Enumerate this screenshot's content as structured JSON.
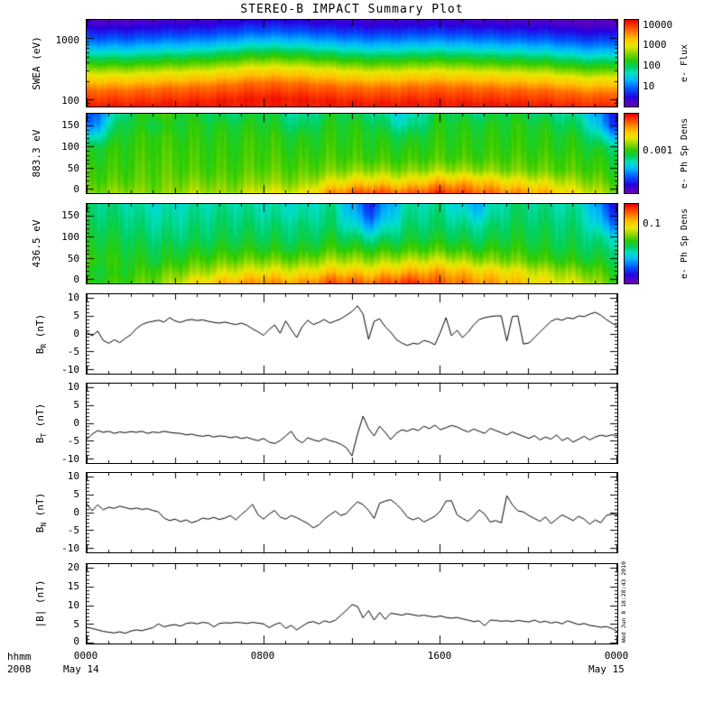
{
  "title": "STEREO-B IMPACT Summary Plot",
  "timestamp": "Wed Jun  8 18:28:43 2010",
  "footer": {
    "hhmm": "hhmm",
    "year": "2008",
    "date_start": "May 14",
    "date_end": "May 15"
  },
  "x_axis": {
    "tick_labels": [
      "0000",
      "0800",
      "1600",
      "0000"
    ],
    "hours_range": [
      0,
      24
    ]
  },
  "colormap": {
    "stops": [
      [
        0.0,
        "#6a00b8"
      ],
      [
        0.1,
        "#2800e0"
      ],
      [
        0.2,
        "#0055ff"
      ],
      [
        0.3,
        "#00b4ff"
      ],
      [
        0.38,
        "#00e0c8"
      ],
      [
        0.46,
        "#00d060"
      ],
      [
        0.54,
        "#30cc00"
      ],
      [
        0.62,
        "#90d800"
      ],
      [
        0.7,
        "#e8e800"
      ],
      [
        0.78,
        "#ffc400"
      ],
      [
        0.86,
        "#ff8000"
      ],
      [
        0.93,
        "#ff4000"
      ],
      [
        1.0,
        "#e80000"
      ]
    ]
  },
  "chart_data": [
    {
      "type": "heatmap",
      "name": "SWEA",
      "ylabel": "SWEA (eV)",
      "yscale": "log",
      "yrange": [
        80,
        2000
      ],
      "ytick_labels": [
        "1000",
        "100"
      ],
      "y_major": [
        100,
        1000
      ],
      "y_minor": [
        90,
        200,
        300,
        400,
        500,
        600,
        700,
        800,
        900,
        2000
      ],
      "colorbar": {
        "labels": [
          "10000",
          "1000",
          "100",
          "10"
        ],
        "title": "e- Flux"
      },
      "profile": [
        0.03,
        0.1,
        0.17,
        0.26,
        0.36,
        0.48,
        0.58,
        0.7,
        0.79,
        0.88,
        0.93,
        0.97
      ],
      "col_shift": [
        0,
        0,
        0,
        0.2,
        0.3,
        0.4,
        0.6,
        0.9,
        1.0,
        0.9,
        0.7,
        0.5,
        0.3,
        0.3,
        0.4,
        0.5,
        0.4,
        0.3,
        0.2,
        0.1,
        0.0,
        -0.3,
        -0.5,
        -0.3
      ],
      "noise": 0.02
    },
    {
      "type": "heatmap",
      "name": "883.3 eV",
      "ylabel": "883.3 eV",
      "yscale": "linear",
      "yrange": [
        -8,
        178
      ],
      "ytick_labels": [
        "150",
        "100",
        "50",
        "0"
      ],
      "y_major": [
        0,
        50,
        100,
        150
      ],
      "y_minor": [
        10,
        20,
        30,
        40,
        60,
        70,
        80,
        90,
        110,
        120,
        130,
        140,
        160,
        170
      ],
      "colorbar": {
        "labels": [
          "0.001"
        ],
        "title": "e- Ph Sp Dens"
      },
      "grid": [
        [
          0.15,
          0.45,
          0.55,
          0.5,
          0.45,
          0.5,
          0.4,
          0.5,
          0.45,
          0.35,
          0.5,
          0.45,
          0.5,
          0.45,
          0.4,
          0.12
        ],
        [
          0.2,
          0.5,
          0.5,
          0.52,
          0.5,
          0.52,
          0.45,
          0.52,
          0.5,
          0.4,
          0.52,
          0.5,
          0.52,
          0.5,
          0.45,
          0.15
        ],
        [
          0.35,
          0.52,
          0.54,
          0.53,
          0.52,
          0.54,
          0.5,
          0.53,
          0.52,
          0.48,
          0.53,
          0.52,
          0.53,
          0.52,
          0.5,
          0.3
        ],
        [
          0.5,
          0.53,
          0.55,
          0.54,
          0.53,
          0.55,
          0.52,
          0.54,
          0.53,
          0.52,
          0.54,
          0.53,
          0.54,
          0.53,
          0.52,
          0.45
        ],
        [
          0.52,
          0.54,
          0.56,
          0.55,
          0.54,
          0.56,
          0.54,
          0.56,
          0.55,
          0.54,
          0.56,
          0.55,
          0.56,
          0.55,
          0.54,
          0.5
        ],
        [
          0.54,
          0.55,
          0.57,
          0.56,
          0.55,
          0.58,
          0.56,
          0.6,
          0.62,
          0.6,
          0.64,
          0.62,
          0.6,
          0.58,
          0.56,
          0.52
        ],
        [
          0.56,
          0.57,
          0.58,
          0.6,
          0.58,
          0.62,
          0.6,
          0.7,
          0.75,
          0.72,
          0.8,
          0.78,
          0.72,
          0.68,
          0.62,
          0.55
        ],
        [
          0.6,
          0.62,
          0.6,
          0.65,
          0.62,
          0.7,
          0.68,
          0.85,
          0.92,
          0.88,
          0.95,
          0.9,
          0.85,
          0.8,
          0.7,
          0.6
        ]
      ],
      "noise": 0.05
    },
    {
      "type": "heatmap",
      "name": "436.5 eV",
      "ylabel": "436.5 eV",
      "yscale": "linear",
      "yrange": [
        -8,
        178
      ],
      "ytick_labels": [
        "150",
        "100",
        "50",
        "0"
      ],
      "y_major": [
        0,
        50,
        100,
        150
      ],
      "y_minor": [
        10,
        20,
        30,
        40,
        60,
        70,
        80,
        90,
        110,
        120,
        130,
        140,
        160,
        170
      ],
      "colorbar": {
        "labels": [
          "0.1"
        ],
        "title": "e- Ph Sp Dens"
      },
      "grid": [
        [
          0.45,
          0.42,
          0.38,
          0.4,
          0.42,
          0.4,
          0.38,
          0.42,
          0.15,
          0.4,
          0.42,
          0.3,
          0.45,
          0.42,
          0.4,
          0.1
        ],
        [
          0.46,
          0.44,
          0.4,
          0.42,
          0.44,
          0.42,
          0.4,
          0.44,
          0.2,
          0.42,
          0.44,
          0.35,
          0.46,
          0.44,
          0.42,
          0.15
        ],
        [
          0.48,
          0.46,
          0.42,
          0.44,
          0.46,
          0.45,
          0.44,
          0.46,
          0.3,
          0.45,
          0.46,
          0.42,
          0.48,
          0.46,
          0.44,
          0.25
        ],
        [
          0.5,
          0.48,
          0.45,
          0.46,
          0.48,
          0.48,
          0.46,
          0.5,
          0.42,
          0.48,
          0.5,
          0.46,
          0.5,
          0.48,
          0.46,
          0.38
        ],
        [
          0.52,
          0.5,
          0.48,
          0.5,
          0.52,
          0.52,
          0.5,
          0.55,
          0.52,
          0.54,
          0.56,
          0.52,
          0.54,
          0.5,
          0.48,
          0.44
        ],
        [
          0.54,
          0.52,
          0.5,
          0.55,
          0.58,
          0.6,
          0.58,
          0.65,
          0.62,
          0.66,
          0.68,
          0.62,
          0.6,
          0.55,
          0.52,
          0.48
        ],
        [
          0.5,
          0.52,
          0.56,
          0.62,
          0.68,
          0.72,
          0.7,
          0.78,
          0.75,
          0.8,
          0.82,
          0.76,
          0.72,
          0.65,
          0.6,
          0.52
        ],
        [
          0.52,
          0.55,
          0.6,
          0.72,
          0.8,
          0.85,
          0.82,
          0.92,
          0.88,
          0.95,
          0.9,
          0.85,
          0.8,
          0.72,
          0.68,
          0.55
        ]
      ],
      "noise": 0.05
    },
    {
      "type": "line",
      "name": "B_R",
      "ylabel_base": "B",
      "ylabel_sub": "R",
      "ylabel_unit": " (nT)",
      "yscale": "linear",
      "yrange": [
        -11,
        11
      ],
      "ytick_labels": [
        "10",
        "5",
        "0",
        "-5",
        "-10"
      ],
      "y_major": [
        -10,
        -5,
        0,
        5,
        10
      ],
      "y_minor": [
        -9,
        -8,
        -7,
        -6,
        -4,
        -3,
        -2,
        -1,
        1,
        2,
        3,
        4,
        6,
        7,
        8,
        9
      ],
      "values": [
        0.5,
        -0.5,
        0.8,
        -1.8,
        -2.6,
        -1.6,
        -2.4,
        -1.2,
        -0.2,
        1.5,
        2.6,
        3.2,
        3.5,
        3.8,
        3.3,
        4.5,
        3.6,
        3.2,
        3.8,
        4.0,
        3.7,
        3.9,
        3.5,
        3.2,
        3.0,
        3.3,
        2.9,
        2.6,
        3.0,
        2.4,
        1.4,
        0.6,
        -0.4,
        1.2,
        2.5,
        0.2,
        3.6,
        1.2,
        -1.0,
        2.0,
        3.8,
        2.6,
        3.2,
        4.0,
        3.0,
        3.6,
        4.2,
        5.2,
        6.2,
        7.8,
        5.5,
        -1.5,
        3.5,
        4.2,
        2.0,
        0.5,
        -1.5,
        -2.5,
        -3.2,
        -2.6,
        -2.8,
        -1.8,
        -2.2,
        -3.0,
        0.5,
        4.5,
        -0.5,
        1.0,
        -1.0,
        0.5,
        2.5,
        4.0,
        4.5,
        4.8,
        5.0,
        5.0,
        -2.0,
        4.8,
        5.0,
        -2.8,
        -2.5,
        -1.0,
        0.5,
        2.0,
        3.5,
        4.2,
        3.8,
        4.5,
        4.2,
        5.0,
        4.8,
        5.5,
        6.0,
        5.2,
        4.0,
        3.0,
        2.2
      ]
    },
    {
      "type": "line",
      "name": "B_T",
      "ylabel_base": "B",
      "ylabel_sub": "T",
      "ylabel_unit": " (nT)",
      "yscale": "linear",
      "yrange": [
        -11,
        11
      ],
      "ytick_labels": [
        "10",
        "5",
        "0",
        "-5",
        "-10"
      ],
      "y_major": [
        -10,
        -5,
        0,
        5,
        10
      ],
      "y_minor": [
        -9,
        -8,
        -7,
        -6,
        -4,
        -3,
        -2,
        -1,
        1,
        2,
        3,
        4,
        6,
        7,
        8,
        9
      ],
      "values": [
        -4.5,
        -3.0,
        -2.0,
        -2.5,
        -2.2,
        -2.8,
        -2.4,
        -2.6,
        -2.3,
        -2.5,
        -2.2,
        -2.8,
        -2.4,
        -2.6,
        -2.2,
        -2.5,
        -2.7,
        -2.8,
        -3.2,
        -3.0,
        -3.4,
        -3.6,
        -3.3,
        -3.8,
        -3.5,
        -3.6,
        -4.0,
        -3.7,
        -4.2,
        -3.9,
        -4.4,
        -4.8,
        -4.2,
        -5.2,
        -5.6,
        -4.8,
        -3.5,
        -2.2,
        -4.5,
        -5.4,
        -4.0,
        -4.6,
        -5.0,
        -4.2,
        -4.8,
        -5.2,
        -5.8,
        -6.8,
        -9.0,
        -3.0,
        2.0,
        -1.5,
        -3.5,
        -0.8,
        -2.5,
        -4.5,
        -2.8,
        -1.8,
        -2.2,
        -1.5,
        -2.0,
        -0.8,
        -1.5,
        -0.5,
        -1.8,
        -1.2,
        -0.6,
        -1.0,
        -1.8,
        -2.4,
        -1.6,
        -2.2,
        -2.8,
        -1.4,
        -2.0,
        -2.6,
        -3.2,
        -2.4,
        -3.0,
        -3.6,
        -4.2,
        -3.4,
        -4.6,
        -3.8,
        -4.4,
        -3.2,
        -4.8,
        -4.0,
        -5.2,
        -4.4,
        -3.6,
        -4.6,
        -3.8,
        -3.3,
        -3.6,
        -3.2,
        -3.4
      ]
    },
    {
      "type": "line",
      "name": "B_N",
      "ylabel_base": "B",
      "ylabel_sub": "N",
      "ylabel_unit": " (nT)",
      "yscale": "linear",
      "yrange": [
        -11,
        11
      ],
      "ytick_labels": [
        "10",
        "5",
        "0",
        "-5",
        "-10"
      ],
      "y_major": [
        -10,
        -5,
        0,
        5,
        10
      ],
      "y_minor": [
        -9,
        -8,
        -7,
        -6,
        -4,
        -3,
        -2,
        -1,
        1,
        2,
        3,
        4,
        6,
        7,
        8,
        9
      ],
      "values": [
        2.5,
        0.5,
        2.2,
        0.8,
        1.5,
        1.2,
        1.8,
        1.4,
        1.0,
        1.3,
        0.9,
        1.1,
        0.6,
        0.2,
        -1.5,
        -2.2,
        -1.8,
        -2.5,
        -2.0,
        -2.8,
        -2.3,
        -1.5,
        -1.8,
        -1.3,
        -1.9,
        -1.5,
        -0.8,
        -2.0,
        -0.5,
        0.8,
        2.3,
        -0.6,
        -1.8,
        -0.4,
        0.6,
        -1.2,
        -1.8,
        -0.8,
        -1.4,
        -2.2,
        -3.0,
        -4.2,
        -3.4,
        -1.8,
        -0.6,
        0.4,
        -0.8,
        -0.2,
        1.5,
        3.0,
        2.2,
        0.6,
        -1.6,
        2.6,
        3.2,
        3.6,
        2.4,
        0.8,
        -1.2,
        -2.0,
        -1.4,
        -2.6,
        -1.8,
        -1.0,
        0.5,
        3.2,
        3.3,
        -0.6,
        -1.6,
        -2.4,
        -1.0,
        0.8,
        -0.4,
        -2.6,
        -2.2,
        -2.8,
        4.7,
        2.2,
        0.5,
        0.2,
        -0.8,
        -1.6,
        -2.4,
        -1.2,
        -3.0,
        -1.8,
        -0.6,
        -1.4,
        -2.2,
        -1.0,
        -1.8,
        -3.2,
        -2.0,
        -2.8,
        -0.8,
        -0.4,
        -0.6
      ]
    },
    {
      "type": "line",
      "name": "|B|",
      "ylabel_base": "|B|",
      "ylabel_sub": "",
      "ylabel_unit": " (nT)",
      "yscale": "linear",
      "yrange": [
        0,
        21
      ],
      "ytick_labels": [
        "20",
        "15",
        "10",
        "5",
        "0"
      ],
      "y_major": [
        0,
        5,
        10,
        15,
        20
      ],
      "y_minor": [
        1,
        2,
        3,
        4,
        6,
        7,
        8,
        9,
        11,
        12,
        13,
        14,
        16,
        17,
        18,
        19
      ],
      "values": [
        4.3,
        4.0,
        3.6,
        3.2,
        3.0,
        2.8,
        3.1,
        2.7,
        3.3,
        3.6,
        3.4,
        3.8,
        4.2,
        5.2,
        4.4,
        4.8,
        5.0,
        4.6,
        5.3,
        5.5,
        5.2,
        5.6,
        5.4,
        4.4,
        5.3,
        5.5,
        5.4,
        5.6,
        5.5,
        5.3,
        5.6,
        5.4,
        5.2,
        4.2,
        5.0,
        5.5,
        4.0,
        4.8,
        3.6,
        4.6,
        5.5,
        5.8,
        5.2,
        6.0,
        5.6,
        6.2,
        7.5,
        8.8,
        10.3,
        9.8,
        6.8,
        8.7,
        6.2,
        8.2,
        6.4,
        8.0,
        7.8,
        7.5,
        7.9,
        7.6,
        7.3,
        7.5,
        7.2,
        7.0,
        7.3,
        6.9,
        6.7,
        6.9,
        6.5,
        6.2,
        5.8,
        6.0,
        4.7,
        6.2,
        6.1,
        5.9,
        6.0,
        5.8,
        6.1,
        5.9,
        5.7,
        6.2,
        5.6,
        5.9,
        5.4,
        5.7,
        5.2,
        6.0,
        5.5,
        5.0,
        5.3,
        4.8,
        4.6,
        4.3,
        4.5,
        4.0,
        3.2
      ]
    }
  ]
}
